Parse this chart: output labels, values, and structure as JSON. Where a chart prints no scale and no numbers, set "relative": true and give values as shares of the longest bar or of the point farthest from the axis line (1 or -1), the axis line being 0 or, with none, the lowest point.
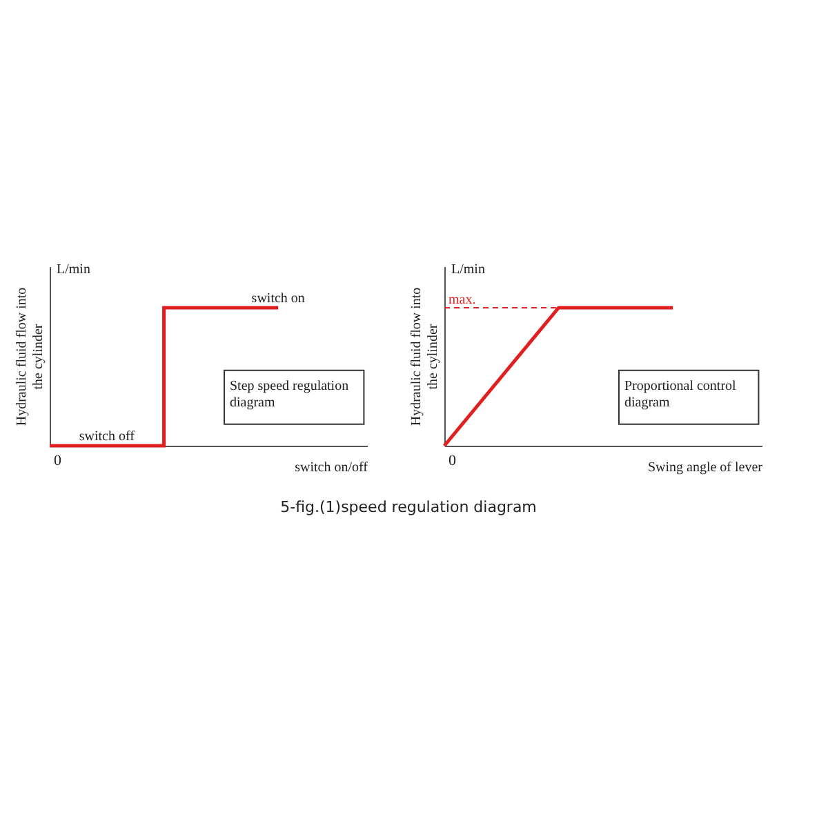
{
  "chart_data": [
    {
      "type": "line",
      "relative": true,
      "xlabel": "switch on/off",
      "ylabel": "Hydraulic fluid flow into\nthe cylinder",
      "categories": [
        null,
        null,
        null
      ],
      "series": [
        {
          "type": "step",
          "color": "#e02020",
          "values": [
            0,
            1,
            1
          ]
        }
      ],
      "annotations": [
        "L/min",
        "Step speed regulation\ndiagram",
        "0",
        {
          "text": "switch off",
          "y": 0
        },
        {
          "text": "switch on",
          "y": 1
        }
      ]
    },
    {
      "type": "line",
      "relative": true,
      "xlabel": "Swing angle of lever",
      "ylabel": "Hydraulic fluid flow into\nthe cylinder",
      "categories": [
        null,
        null,
        null
      ],
      "series": [
        {
          "color": "#e02020",
          "values": [
            0,
            1,
            1
          ]
        }
      ],
      "ref_lines": [
        {
          "axis": "y",
          "value": 1,
          "label": "max.",
          "color": "#e02020",
          "line_style": "dashed"
        }
      ],
      "annotations": [
        "L/min",
        "Proportional control\ndiagram",
        "0"
      ]
    },
    {
      "type": "other",
      "title": "5-fig.(1)speed regulation diagram"
    }
  ]
}
